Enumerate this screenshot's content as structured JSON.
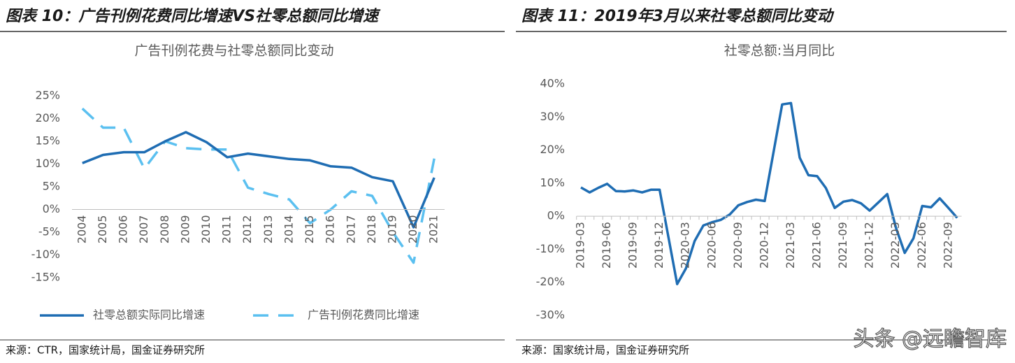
{
  "chart_data": [
    {
      "type": "line",
      "figure_title": "图表 10：广告刊例花费同比增速VS社零总额同比增速",
      "title": "广告刊例花费与社零总额同比变动",
      "categories": [
        "2004",
        "2005",
        "2006",
        "2007",
        "2008",
        "2009",
        "2010",
        "2011",
        "2012",
        "2013",
        "2014",
        "2015",
        "2016",
        "2017",
        "2018",
        "2019",
        "2020",
        "2021"
      ],
      "series": [
        {
          "name": "社零总额实际同比增速",
          "color": "#1f6db3",
          "line_style": "solid",
          "values": [
            10.2,
            12,
            12.6,
            12.6,
            15,
            17,
            14.8,
            11.5,
            12.3,
            11.7,
            11.1,
            10.8,
            9.5,
            9.2,
            7.1,
            6.2,
            -3.9,
            7
          ]
        },
        {
          "name": "广告刊例花费同比增速",
          "color": "#5bc0f0",
          "line_style": "dashed",
          "values": [
            22.2,
            18,
            18,
            9,
            15,
            13.5,
            13.2,
            13.2,
            4.8,
            3.4,
            2.2,
            -3,
            0,
            4,
            3,
            -5,
            -11.7,
            11.2
          ]
        }
      ],
      "ylim": [
        -15,
        25
      ],
      "yticks": [
        {
          "value": 25,
          "label": "25%"
        },
        {
          "value": 20,
          "label": "20%"
        },
        {
          "value": 15,
          "label": "15%"
        },
        {
          "value": 10,
          "label": "10%"
        },
        {
          "value": 5,
          "label": "5%"
        },
        {
          "value": 0,
          "label": "0%"
        },
        {
          "value": -5,
          "label": "-5%"
        },
        {
          "value": -10,
          "label": "-10%"
        },
        {
          "value": -15,
          "label": "-15%"
        }
      ],
      "grid": false,
      "legend": "bottom",
      "source": "来源：CTR，国家统计局，国金证券研究所"
    },
    {
      "type": "line",
      "figure_title": "图表 11：2019年3月以来社零总额同比变动",
      "title": "社零总额:当月同比",
      "categories": [
        "2019-03",
        null,
        null,
        "2019-06",
        null,
        null,
        "2019-09",
        null,
        null,
        "2019-12",
        null,
        null,
        "2020-03",
        null,
        null,
        "2020-06",
        null,
        null,
        "2020-09",
        null,
        null,
        "2020-12",
        null,
        null,
        "2021-03",
        null,
        null,
        "2021-06",
        null,
        null,
        "2021-09",
        null,
        null,
        "2021-12",
        null,
        null,
        "2022-03",
        null,
        null,
        "2022-06",
        null,
        null,
        "2022-09",
        null
      ],
      "series": [
        {
          "color": "#1f6db3",
          "line_style": "solid",
          "values": [
            8.7,
            7.2,
            8.6,
            9.8,
            7.6,
            7.5,
            7.8,
            7.2,
            8.0,
            8.0,
            -6.3,
            -20.5,
            -15.8,
            -7.5,
            -2.8,
            -1.8,
            -1.1,
            0.5,
            3.3,
            4.3,
            5.0,
            4.6,
            19.2,
            33.8,
            34.2,
            17.7,
            12.4,
            12.1,
            8.5,
            2.5,
            4.4,
            4.9,
            3.9,
            1.7,
            4.2,
            6.7,
            -3.5,
            -11.1,
            -6.7,
            3.1,
            2.7,
            5.4,
            2.5,
            -0.5
          ]
        }
      ],
      "ylim": [
        -30,
        40
      ],
      "yticks": [
        {
          "value": 40,
          "label": "40%"
        },
        {
          "value": 30,
          "label": "30%"
        },
        {
          "value": 20,
          "label": "20%"
        },
        {
          "value": 10,
          "label": "10%"
        },
        {
          "value": 0,
          "label": "0%"
        },
        {
          "value": -10,
          "label": "-10%"
        },
        {
          "value": -20,
          "label": "-20%"
        },
        {
          "value": -30,
          "label": "-30%"
        }
      ],
      "grid": false,
      "source": "来源：国家统计局，国金证券研究所"
    }
  ],
  "watermark": "头条 @远瞻智库"
}
